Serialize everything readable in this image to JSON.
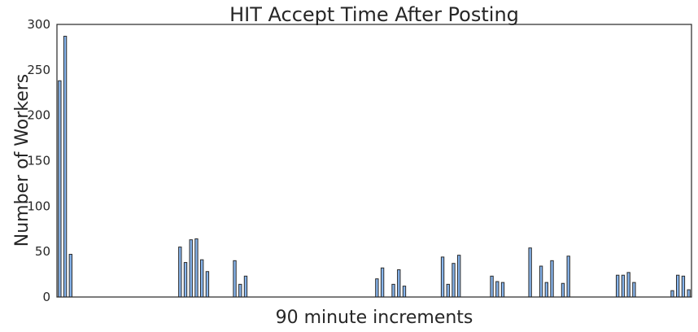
{
  "chart_data": {
    "type": "bar",
    "title": "HIT Accept Time After Posting",
    "xlabel": "90 minute increments",
    "ylabel": "Number of Workers",
    "ylim": [
      0,
      300
    ],
    "yticks": [
      0,
      50,
      100,
      150,
      200,
      250,
      300
    ],
    "grid": false,
    "x_tick_labels": false,
    "colors": {
      "bar": "#86b4ec",
      "edge": "#2b2b2b",
      "frame": "#262626"
    },
    "values": [
      238,
      287,
      47,
      0,
      0,
      0,
      0,
      0,
      0,
      0,
      0,
      0,
      0,
      0,
      0,
      0,
      0,
      0,
      0,
      0,
      0,
      0,
      55,
      38,
      63,
      64,
      41,
      28,
      0,
      0,
      0,
      0,
      40,
      14,
      23,
      0,
      0,
      0,
      0,
      0,
      0,
      0,
      0,
      0,
      0,
      0,
      0,
      0,
      0,
      0,
      0,
      0,
      0,
      0,
      0,
      0,
      0,
      0,
      20,
      32,
      0,
      14,
      30,
      12,
      0,
      0,
      0,
      0,
      0,
      0,
      44,
      14,
      37,
      46,
      0,
      0,
      0,
      0,
      0,
      23,
      17,
      16,
      0,
      0,
      0,
      0,
      54,
      0,
      34,
      16,
      40,
      0,
      15,
      45,
      0,
      0,
      0,
      0,
      0,
      0,
      0,
      0,
      24,
      24,
      27,
      16,
      0,
      0,
      0,
      0,
      0,
      0,
      7,
      24,
      23,
      8
    ]
  }
}
